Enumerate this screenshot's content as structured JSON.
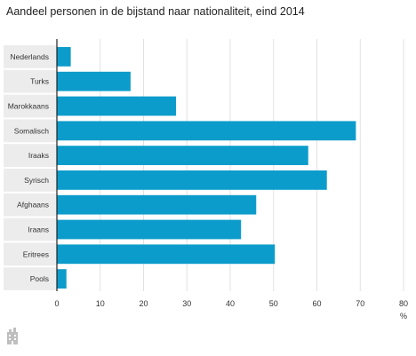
{
  "chart_data": {
    "type": "bar",
    "orientation": "horizontal",
    "title": "Aandeel personen in de bijstand naar nationaliteit, eind 2014",
    "categories": [
      "Nederlands",
      "Turks",
      "Marokkaans",
      "Somalisch",
      "Iraaks",
      "Syrisch",
      "Afghaans",
      "Iraans",
      "Eritrees",
      "Pools"
    ],
    "values": [
      3.2,
      17,
      27.5,
      69,
      58,
      62.3,
      46,
      42.5,
      50.3,
      2.2
    ],
    "x_ticks": [
      "0",
      "10",
      "20",
      "30",
      "40",
      "50",
      "60",
      "70",
      "80"
    ],
    "xlim": [
      0,
      80
    ],
    "xlabel": "%",
    "ylabel": "",
    "grid": true,
    "colors": {
      "bar": "#0c9ccb",
      "band": "#ececec",
      "grid": "#e2e2e2"
    }
  },
  "footer": {
    "icon": "cbs-logo-icon"
  }
}
